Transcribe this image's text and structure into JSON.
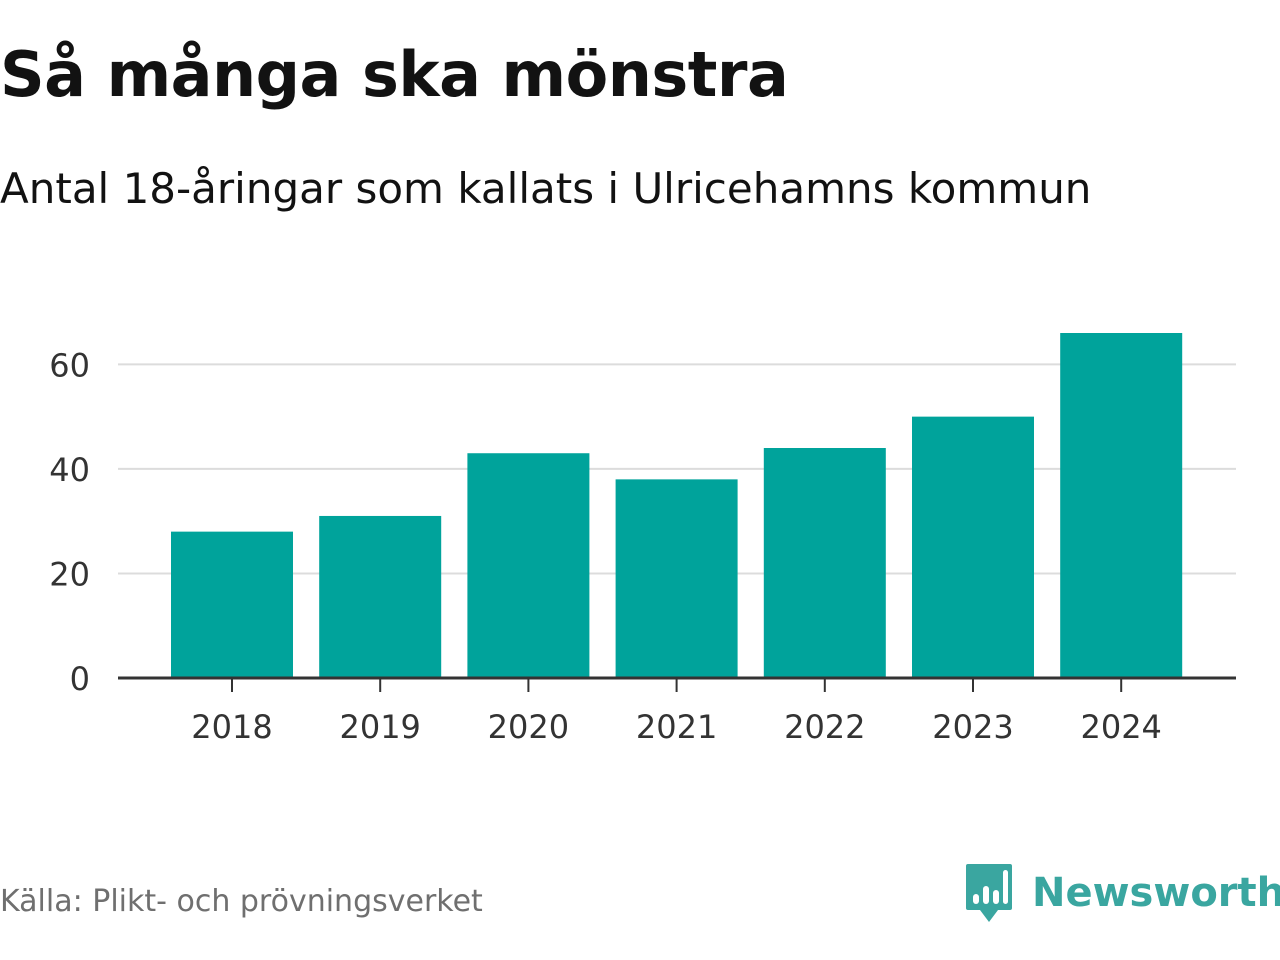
{
  "header": {
    "title": "Så många ska mönstra",
    "subtitle": "Antal 18-åringar som kallats i Ulricehamns kommun"
  },
  "footer": {
    "source": "Källa: Plikt- och prövningsverket",
    "brand_name": "Newsworthy",
    "brand_icon": "newsworthy-logo-icon"
  },
  "colors": {
    "bar": "#00a39b",
    "grid": "#dcdcdc",
    "axis": "#333333",
    "brand": "#3aa6a0"
  },
  "chart_data": {
    "type": "bar",
    "title": "Så många ska mönstra",
    "subtitle": "Antal 18-åringar som kallats i Ulricehamns kommun",
    "xlabel": "",
    "ylabel": "",
    "categories": [
      "2018",
      "2019",
      "2020",
      "2021",
      "2022",
      "2023",
      "2024"
    ],
    "values": [
      28,
      31,
      43,
      38,
      44,
      50,
      66
    ],
    "ylim": [
      0,
      66
    ],
    "yticks": [
      0,
      20,
      40,
      60
    ],
    "grid": true
  }
}
